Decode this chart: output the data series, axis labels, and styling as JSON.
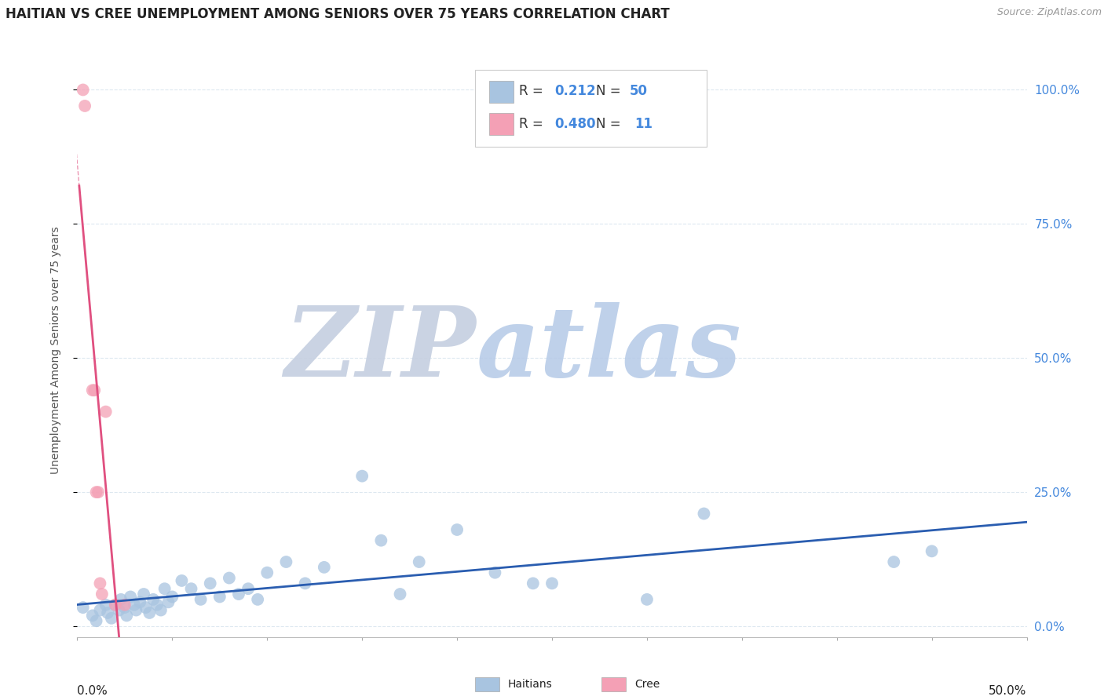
{
  "title": "HAITIAN VS CREE UNEMPLOYMENT AMONG SENIORS OVER 75 YEARS CORRELATION CHART",
  "source": "Source: ZipAtlas.com",
  "ylabel": "Unemployment Among Seniors over 75 years",
  "xlim": [
    0.0,
    0.5
  ],
  "ylim": [
    -0.02,
    1.05
  ],
  "yticks": [
    0.0,
    0.25,
    0.5,
    0.75,
    1.0
  ],
  "ytick_labels_right": [
    "0.0%",
    "25.0%",
    "50.0%",
    "75.0%",
    "100.0%"
  ],
  "R_haitians": 0.212,
  "N_haitians": 50,
  "R_cree": 0.48,
  "N_cree": 11,
  "haitian_color": "#A8C4E0",
  "cree_color": "#F4A0B5",
  "trend_haitian_color": "#2a5db0",
  "trend_cree_color": "#e05080",
  "watermark_zip_color": "#c8d4e8",
  "watermark_atlas_color": "#b0c8e8",
  "haitian_x": [
    0.003,
    0.008,
    0.01,
    0.012,
    0.015,
    0.016,
    0.018,
    0.02,
    0.022,
    0.023,
    0.025,
    0.026,
    0.028,
    0.03,
    0.031,
    0.033,
    0.035,
    0.036,
    0.038,
    0.04,
    0.042,
    0.044,
    0.046,
    0.048,
    0.05,
    0.055,
    0.06,
    0.065,
    0.07,
    0.075,
    0.08,
    0.085,
    0.09,
    0.095,
    0.1,
    0.11,
    0.12,
    0.13,
    0.15,
    0.16,
    0.17,
    0.18,
    0.2,
    0.22,
    0.24,
    0.25,
    0.3,
    0.33,
    0.43,
    0.45
  ],
  "haitian_y": [
    0.035,
    0.02,
    0.01,
    0.03,
    0.04,
    0.025,
    0.015,
    0.04,
    0.03,
    0.05,
    0.035,
    0.02,
    0.055,
    0.04,
    0.03,
    0.045,
    0.06,
    0.035,
    0.025,
    0.05,
    0.04,
    0.03,
    0.07,
    0.045,
    0.055,
    0.085,
    0.07,
    0.05,
    0.08,
    0.055,
    0.09,
    0.06,
    0.07,
    0.05,
    0.1,
    0.12,
    0.08,
    0.11,
    0.28,
    0.16,
    0.06,
    0.12,
    0.18,
    0.1,
    0.08,
    0.08,
    0.05,
    0.21,
    0.12,
    0.14
  ],
  "cree_x": [
    0.003,
    0.004,
    0.008,
    0.009,
    0.01,
    0.011,
    0.012,
    0.013,
    0.015,
    0.02,
    0.025
  ],
  "cree_y": [
    1.0,
    0.97,
    0.44,
    0.44,
    0.25,
    0.25,
    0.08,
    0.06,
    0.4,
    0.04,
    0.04
  ],
  "background_color": "#ffffff",
  "grid_color": "#dde8f0",
  "title_fontsize": 12,
  "label_fontsize": 10,
  "tick_fontsize": 11,
  "source_fontsize": 9
}
